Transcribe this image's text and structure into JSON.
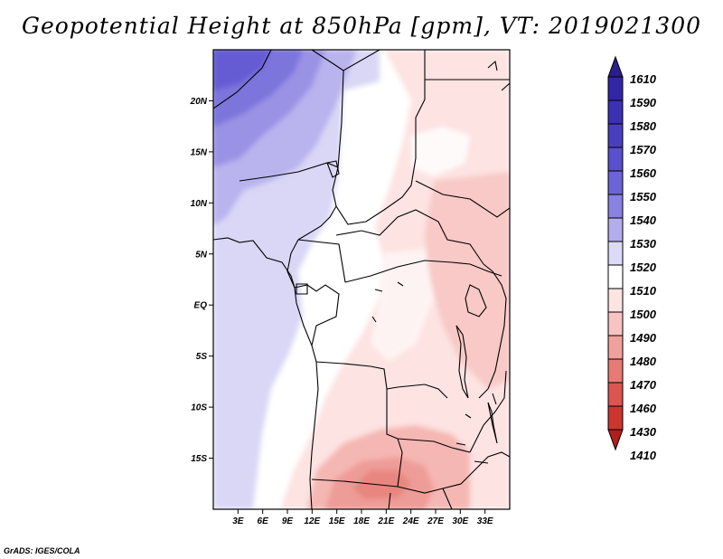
{
  "title": "Geopotential Height at 850hPa [gpm], VT: 2019021300",
  "footer": "GrADS: IGES/COLA",
  "map": {
    "projection": "lat-lon",
    "lon_range": [
      0,
      36
    ],
    "lat_range": [
      -20,
      25
    ],
    "lat_labels": [
      "20N",
      "15N",
      "10N",
      "5N",
      "EQ",
      "5S",
      "10S",
      "15S"
    ],
    "lat_values": [
      20,
      15,
      10,
      5,
      0,
      -5,
      -10,
      -15
    ],
    "lon_labels": [
      "3E",
      "6E",
      "9E",
      "12E",
      "15E",
      "18E",
      "21E",
      "24E",
      "27E",
      "30E",
      "33E"
    ],
    "lon_values": [
      3,
      6,
      9,
      12,
      15,
      18,
      21,
      24,
      27,
      30,
      33
    ]
  },
  "legend": {
    "labels": [
      "1610",
      "1590",
      "1580",
      "1570",
      "1560",
      "1550",
      "1540",
      "1530",
      "1520",
      "1510",
      "1500",
      "1490",
      "1480",
      "1470",
      "1460",
      "1430",
      "1410"
    ],
    "colors": [
      "#2a1d8c",
      "#3326a6",
      "#3c30b4",
      "#4a3ec0",
      "#5a4fcf",
      "#6d63d8",
      "#8a82e0",
      "#b3adec",
      "#dcdaf6",
      "#ffffff",
      "#fde3e2",
      "#f8c3c0",
      "#f1a19d",
      "#e77a74",
      "#dc5550",
      "#cc3530",
      "#b01f1a"
    ]
  },
  "colors": {
    "blue_dark": "#5f55d2",
    "blue_mid": "#a8a1e8",
    "blue_light": "#d9d7f5",
    "white": "#ffffff",
    "pink_light": "#fde4e3",
    "pink_mid": "#f8c4c1",
    "red_mid": "#ef9f9a"
  }
}
